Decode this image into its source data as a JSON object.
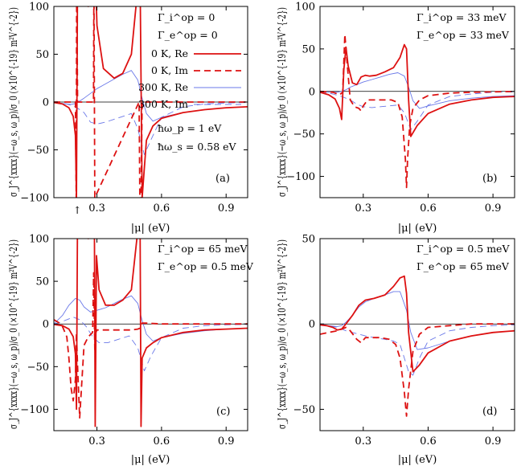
{
  "colors": {
    "dark_red": "#dd1111",
    "light_blue": "#6a78e8",
    "axis": "#000000"
  },
  "legend": {
    "entries": [
      {
        "label": "0 K, Re",
        "series": "0K_Re"
      },
      {
        "label": "0 K, Im",
        "series": "0K_Im"
      },
      {
        "label": "300 K, Re",
        "series": "300K_Re"
      },
      {
        "label": "300 K, Im",
        "series": "300K_Im"
      }
    ]
  },
  "chart_data": [
    {
      "panel": "(a)",
      "type": "line",
      "xlabel": "|μ| (eV)",
      "ylabel": "σ_J^{xxxx}(−ω_s, ω_p)/σ_0 (×10^{-19} m²V^{-2})",
      "xlim": [
        0.1,
        1.0
      ],
      "ylim": [
        -100,
        100
      ],
      "xticks": [
        0.3,
        0.6,
        0.9
      ],
      "yticks": [
        -100,
        -50,
        0,
        50,
        100
      ],
      "annotations": [
        "Γ_i^op = 0",
        "Γ_e^op = 0",
        "ħω_p = 1 eV",
        "ħω_s = 0.58 eV",
        "↑"
      ],
      "series": [
        {
          "name": "0 K, Re",
          "x": [
            0.1,
            0.14,
            0.17,
            0.19,
            0.2,
            0.205,
            0.21,
            0.23,
            0.26,
            0.285,
            0.29,
            0.295,
            0.3,
            0.33,
            0.38,
            0.42,
            0.46,
            0.49,
            0.5,
            0.51,
            0.53,
            0.56,
            0.6,
            0.7,
            0.8,
            0.9,
            1.0
          ],
          "y": [
            -0.5,
            -2,
            -6,
            -15,
            -35,
            -100,
            140,
            110,
            100,
            120,
            140,
            120,
            80,
            35,
            25,
            30,
            50,
            120,
            140,
            -100,
            -40,
            -25,
            -17,
            -11,
            -8,
            -6,
            -5
          ]
        },
        {
          "name": "0 K, Im",
          "x": [
            0.1,
            0.2,
            0.204,
            0.206,
            0.21,
            0.284,
            0.286,
            0.29,
            0.496,
            0.5,
            0.505,
            0.51,
            0.6,
            0.8,
            1.0
          ],
          "y": [
            0,
            0,
            -100,
            130,
            0,
            0,
            130,
            -100,
            0,
            -120,
            -100,
            0,
            0,
            0,
            0
          ]
        },
        {
          "name": "300 K, Re",
          "x": [
            0.1,
            0.14,
            0.18,
            0.2,
            0.22,
            0.24,
            0.27,
            0.3,
            0.34,
            0.38,
            0.42,
            0.46,
            0.49,
            0.51,
            0.53,
            0.56,
            0.6,
            0.7,
            0.8,
            0.9,
            1.0
          ],
          "y": [
            -0.5,
            -1.5,
            -2.5,
            -1.5,
            1,
            4,
            9,
            14,
            19,
            24,
            29,
            33,
            23,
            4,
            -12,
            -20,
            -16,
            -11,
            -8,
            -6,
            -5
          ]
        },
        {
          "name": "300 K, Im",
          "x": [
            0.1,
            0.16,
            0.2,
            0.24,
            0.27,
            0.3,
            0.34,
            0.38,
            0.42,
            0.46,
            0.49,
            0.52,
            0.55,
            0.6,
            0.7,
            0.8,
            0.9,
            1.0
          ],
          "y": [
            -0.5,
            -2,
            -5,
            -11,
            -21,
            -23,
            -21,
            -18,
            -15,
            -12,
            -28,
            -55,
            -40,
            -16,
            -5,
            -2,
            -1,
            -0.5
          ]
        }
      ]
    },
    {
      "panel": "(b)",
      "type": "line",
      "xlabel": "|μ| (eV)",
      "ylabel": "σ_J^{xxxx}(−ω_s, ω_p)/σ_0 (×10^{-19} m²V^{-2})",
      "xlim": [
        0.1,
        1.0
      ],
      "ylim": [
        -125,
        100
      ],
      "xticks": [
        0.3,
        0.6,
        0.9
      ],
      "yticks": [
        -100,
        -50,
        0,
        50,
        100
      ],
      "annotations": [
        "Γ_i^op = 33 meV",
        "Γ_e^op = 33 meV"
      ],
      "series": [
        {
          "name": "0 K, Re",
          "x": [
            0.1,
            0.14,
            0.17,
            0.19,
            0.2,
            0.21,
            0.22,
            0.23,
            0.25,
            0.27,
            0.29,
            0.31,
            0.33,
            0.36,
            0.4,
            0.44,
            0.47,
            0.49,
            0.5,
            0.51,
            0.52,
            0.55,
            0.6,
            0.7,
            0.8,
            0.9,
            1.0
          ],
          "y": [
            -1,
            -4,
            -9,
            -20,
            -33,
            25,
            52,
            30,
            10,
            8,
            17,
            19,
            18,
            19,
            23,
            28,
            40,
            55,
            50,
            -10,
            -53,
            -40,
            -26,
            -15,
            -10,
            -7,
            -6
          ]
        },
        {
          "name": "0 K, Im",
          "x": [
            0.1,
            0.16,
            0.19,
            0.205,
            0.215,
            0.225,
            0.24,
            0.26,
            0.28,
            0.29,
            0.3,
            0.32,
            0.35,
            0.39,
            0.43,
            0.46,
            0.48,
            0.495,
            0.5,
            0.505,
            0.515,
            0.53,
            0.56,
            0.6,
            0.7,
            0.8,
            1.0
          ],
          "y": [
            0,
            -1,
            -4,
            -1,
            67,
            35,
            -10,
            -18,
            -20,
            -23,
            -17,
            -10,
            -10,
            -10,
            -10,
            -13,
            -30,
            -80,
            -113,
            -80,
            -40,
            -20,
            -10,
            -5,
            -2,
            -1,
            0
          ]
        },
        {
          "name": "300 K, Re",
          "x": [
            0.1,
            0.14,
            0.18,
            0.2,
            0.22,
            0.24,
            0.27,
            0.3,
            0.34,
            0.38,
            0.42,
            0.46,
            0.49,
            0.51,
            0.53,
            0.56,
            0.6,
            0.7,
            0.8,
            0.9,
            1.0
          ],
          "y": [
            -0.5,
            -1,
            -1,
            0,
            2,
            5,
            8,
            11,
            14,
            17,
            20,
            22,
            18,
            5,
            -11,
            -20,
            -17,
            -11,
            -8,
            -6,
            -5
          ]
        },
        {
          "name": "300 K, Im",
          "x": [
            0.1,
            0.16,
            0.2,
            0.24,
            0.27,
            0.3,
            0.34,
            0.38,
            0.42,
            0.46,
            0.49,
            0.52,
            0.55,
            0.6,
            0.7,
            0.8,
            0.9,
            1.0
          ],
          "y": [
            0,
            -3,
            -6,
            -10,
            -15,
            -18,
            -19,
            -18,
            -17,
            -16,
            -25,
            -45,
            -35,
            -16,
            -6,
            -3,
            -1,
            -0.5
          ]
        }
      ]
    },
    {
      "panel": "(c)",
      "type": "line",
      "xlabel": "|μ| (eV)",
      "ylabel": "σ_J^{xxxx}(−ω_s, ω_p)/σ_0 (×10^{-19} m²V^{-2})",
      "xlim": [
        0.1,
        1.0
      ],
      "ylim": [
        -125,
        100
      ],
      "xticks": [
        0.3,
        0.6,
        0.9
      ],
      "yticks": [
        -100,
        -50,
        0,
        50,
        100
      ],
      "annotations": [
        "Γ_i^op = 65 meV",
        "Γ_e^op = 0.5 meV"
      ],
      "series": [
        {
          "name": "0 K, Re",
          "x": [
            0.1,
            0.14,
            0.17,
            0.19,
            0.2,
            0.205,
            0.21,
            0.23,
            0.26,
            0.283,
            0.288,
            0.292,
            0.298,
            0.31,
            0.34,
            0.38,
            0.42,
            0.46,
            0.49,
            0.5,
            0.505,
            0.51,
            0.53,
            0.56,
            0.6,
            0.7,
            0.8,
            0.9,
            1.0
          ],
          "y": [
            -0.5,
            -2,
            -6,
            -15,
            -35,
            -100,
            140,
            110,
            100,
            120,
            140,
            -120,
            80,
            40,
            22,
            22,
            28,
            40,
            110,
            140,
            -120,
            -40,
            -28,
            -22,
            -16,
            -10,
            -7,
            -6,
            -5
          ]
        },
        {
          "name": "0 K, Im",
          "x": [
            0.1,
            0.12,
            0.14,
            0.16,
            0.17,
            0.18,
            0.19,
            0.2,
            0.205,
            0.21,
            0.22,
            0.24,
            0.26,
            0.28,
            0.285,
            0.29,
            0.295,
            0.3,
            0.34,
            0.4,
            0.46,
            0.49,
            0.5,
            0.51,
            0.53,
            0.6,
            0.8,
            1.0
          ],
          "y": [
            5,
            2,
            -3,
            -15,
            -40,
            -75,
            -90,
            -65,
            -10,
            -50,
            -110,
            -25,
            -15,
            -10,
            60,
            -30,
            -10,
            -7,
            -7,
            -7,
            -7,
            -6,
            -5,
            1,
            1,
            0,
            0,
            0
          ]
        },
        {
          "name": "300 K, Re",
          "x": [
            0.1,
            0.14,
            0.17,
            0.2,
            0.22,
            0.24,
            0.27,
            0.3,
            0.34,
            0.38,
            0.42,
            0.46,
            0.49,
            0.51,
            0.53,
            0.56,
            0.6,
            0.7,
            0.8,
            0.9,
            1.0
          ],
          "y": [
            0,
            10,
            22,
            30,
            28,
            20,
            14,
            16,
            19,
            24,
            29,
            33,
            24,
            4,
            -12,
            -20,
            -16,
            -11,
            -8,
            -6,
            -5
          ]
        },
        {
          "name": "300 K, Im",
          "x": [
            0.1,
            0.13,
            0.16,
            0.19,
            0.22,
            0.25,
            0.28,
            0.31,
            0.35,
            0.4,
            0.45,
            0.49,
            0.52,
            0.55,
            0.6,
            0.7,
            0.8,
            0.9,
            1.0
          ],
          "y": [
            0,
            2,
            5,
            8,
            5,
            -3,
            -15,
            -22,
            -22,
            -18,
            -14,
            -28,
            -55,
            -38,
            -16,
            -5,
            -2,
            -1,
            -0.5
          ]
        }
      ]
    },
    {
      "panel": "(d)",
      "type": "line",
      "xlabel": "|μ| (eV)",
      "ylabel": "σ_J^{xxxx}(−ω_s, ω_p)/σ_0 (×10^{-19} m²V^{-2})",
      "xlim": [
        0.1,
        1.0
      ],
      "ylim": [
        -62.5,
        50
      ],
      "xticks": [
        0.3,
        0.6,
        0.9
      ],
      "yticks": [
        -50,
        0,
        50
      ],
      "annotations": [
        "Γ_i^op = 0.5 meV",
        "Γ_e^op = 65 meV"
      ],
      "series": [
        {
          "name": "0 K, Re",
          "x": [
            0.1,
            0.13,
            0.16,
            0.18,
            0.2,
            0.22,
            0.25,
            0.28,
            0.31,
            0.35,
            0.4,
            0.44,
            0.47,
            0.49,
            0.5,
            0.51,
            0.53,
            0.56,
            0.6,
            0.7,
            0.8,
            0.9,
            1.0
          ],
          "y": [
            -0.5,
            -1,
            -2,
            -3.5,
            -3,
            0,
            5,
            11,
            14,
            15,
            17,
            22,
            27,
            28,
            18,
            -5,
            -28,
            -24,
            -17,
            -10,
            -7,
            -5,
            -4
          ]
        },
        {
          "name": "0 K, Im",
          "x": [
            0.1,
            0.14,
            0.18,
            0.2,
            0.22,
            0.24,
            0.27,
            0.29,
            0.31,
            0.34,
            0.38,
            0.42,
            0.45,
            0.47,
            0.49,
            0.5,
            0.51,
            0.53,
            0.56,
            0.6,
            0.7,
            0.8,
            1.0
          ],
          "y": [
            -6,
            -5,
            -4,
            -3,
            -2,
            -4,
            -9,
            -11,
            -8,
            -8,
            -8,
            -9,
            -12,
            -20,
            -40,
            -54,
            -38,
            -16,
            -6,
            -2,
            -1,
            0,
            0
          ]
        },
        {
          "name": "300 K, Re",
          "x": [
            0.1,
            0.14,
            0.18,
            0.2,
            0.22,
            0.25,
            0.28,
            0.31,
            0.35,
            0.4,
            0.44,
            0.47,
            0.5,
            0.52,
            0.55,
            0.6,
            0.7,
            0.8,
            0.9,
            1.0
          ],
          "y": [
            -0.5,
            -1,
            -1.5,
            -1,
            1,
            5,
            10,
            13,
            15,
            17,
            19,
            19,
            8,
            -5,
            -15,
            -14,
            -10,
            -7,
            -5,
            -4
          ]
        },
        {
          "name": "300 K, Im",
          "x": [
            0.1,
            0.14,
            0.18,
            0.2,
            0.22,
            0.25,
            0.28,
            0.31,
            0.35,
            0.4,
            0.44,
            0.47,
            0.49,
            0.51,
            0.53,
            0.56,
            0.6,
            0.7,
            0.8,
            0.9,
            1.0
          ],
          "y": [
            0,
            -1,
            -2,
            -3,
            -4,
            -5,
            -6,
            -7,
            -8,
            -9,
            -10,
            -12,
            -20,
            -28,
            -30,
            -20,
            -10,
            -4,
            -2,
            -1,
            -0.5
          ]
        }
      ]
    }
  ]
}
